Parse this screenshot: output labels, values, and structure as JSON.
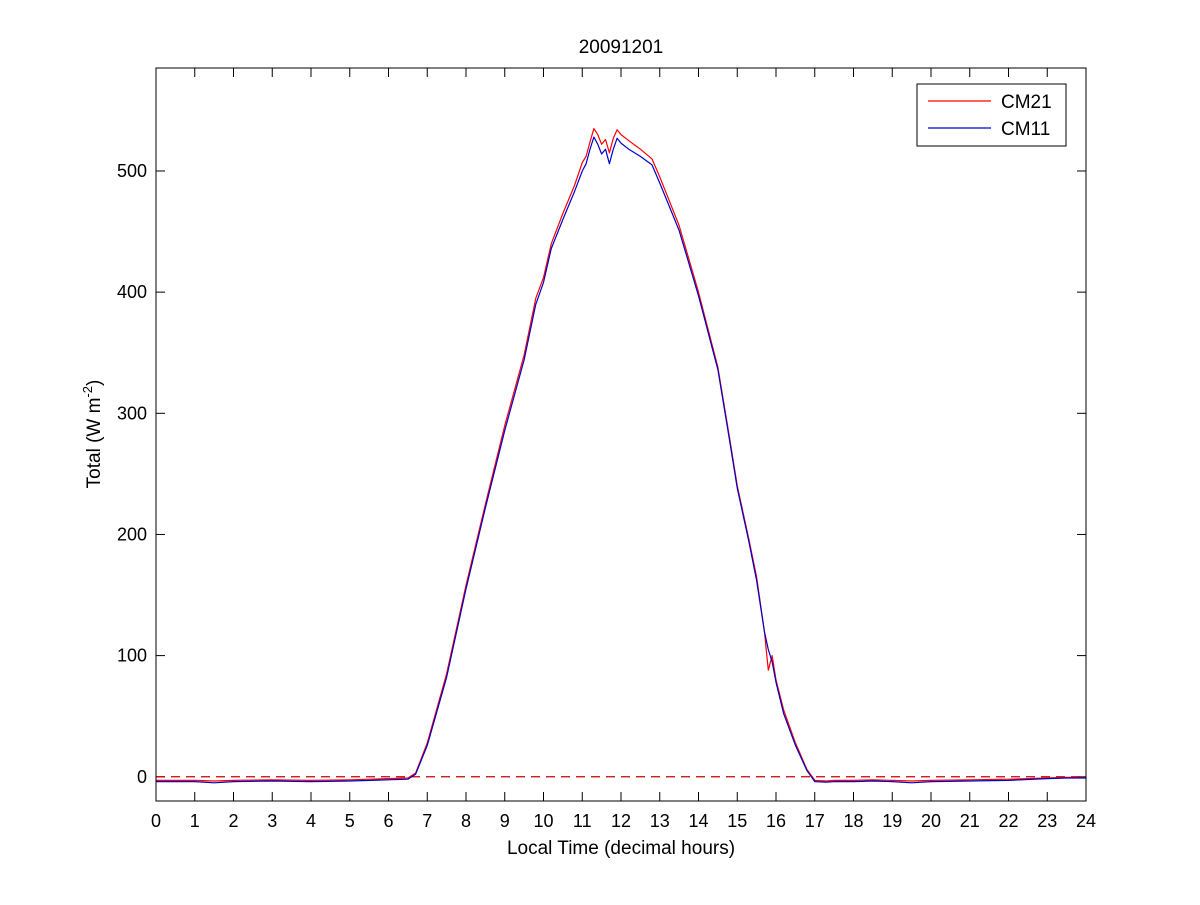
{
  "chart_data": {
    "type": "line",
    "title": "20091201",
    "xlabel": "Local Time (decimal hours)",
    "ylabel": "Total (W m-2)",
    "ylabel_parts": {
      "before": "Total (W m",
      "sup": "-2",
      "after": ")"
    },
    "xlim": [
      0,
      24
    ],
    "ylim": [
      -20,
      585
    ],
    "x_ticks": [
      "0",
      "1",
      "2",
      "3",
      "4",
      "5",
      "6",
      "7",
      "8",
      "9",
      "10",
      "11",
      "12",
      "13",
      "14",
      "15",
      "16",
      "17",
      "18",
      "19",
      "20",
      "21",
      "22",
      "23",
      "24"
    ],
    "y_ticks": [
      "0",
      "100",
      "200",
      "300",
      "400",
      "500"
    ],
    "legend_position": "top-right",
    "grid": false,
    "reference_line": {
      "y": 0,
      "style": "dashed",
      "color": "#cc0000"
    },
    "series": [
      {
        "name": "CM21",
        "color": "#ff0000",
        "points": [
          [
            0,
            -3
          ],
          [
            1,
            -3
          ],
          [
            1.5,
            -3.5
          ],
          [
            2,
            -3
          ],
          [
            3,
            -2.5
          ],
          [
            4,
            -3
          ],
          [
            5,
            -2.5
          ],
          [
            6,
            -1.5
          ],
          [
            6.5,
            -1
          ],
          [
            6.7,
            3
          ],
          [
            7,
            28
          ],
          [
            7.5,
            85
          ],
          [
            8,
            158
          ],
          [
            8.5,
            225
          ],
          [
            9,
            290
          ],
          [
            9.5,
            348
          ],
          [
            9.8,
            395
          ],
          [
            10,
            412
          ],
          [
            10.2,
            440
          ],
          [
            10.5,
            465
          ],
          [
            10.8,
            488
          ],
          [
            11,
            507
          ],
          [
            11.1,
            512
          ],
          [
            11.2,
            524
          ],
          [
            11.3,
            535
          ],
          [
            11.4,
            530
          ],
          [
            11.5,
            522
          ],
          [
            11.6,
            526
          ],
          [
            11.7,
            515
          ],
          [
            11.8,
            527
          ],
          [
            11.9,
            534
          ],
          [
            12,
            530
          ],
          [
            12.2,
            525
          ],
          [
            12.5,
            518
          ],
          [
            12.8,
            510
          ],
          [
            13,
            495
          ],
          [
            13.5,
            455
          ],
          [
            14,
            400
          ],
          [
            14.5,
            338
          ],
          [
            14.8,
            280
          ],
          [
            15,
            240
          ],
          [
            15.3,
            196
          ],
          [
            15.5,
            165
          ],
          [
            15.7,
            120
          ],
          [
            15.8,
            88
          ],
          [
            15.9,
            100
          ],
          [
            16,
            80
          ],
          [
            16.2,
            55
          ],
          [
            16.5,
            28
          ],
          [
            16.8,
            6
          ],
          [
            17,
            -3
          ],
          [
            17.3,
            -3.5
          ],
          [
            17.5,
            -3
          ],
          [
            18,
            -3
          ],
          [
            18.5,
            -2.5
          ],
          [
            19,
            -3
          ],
          [
            19.5,
            -3.5
          ],
          [
            20,
            -3
          ],
          [
            21,
            -2.5
          ],
          [
            22,
            -2
          ],
          [
            23,
            -1
          ],
          [
            23.5,
            -0.5
          ],
          [
            24,
            -0.5
          ]
        ]
      },
      {
        "name": "CM11",
        "color": "#0000cc",
        "points": [
          [
            0,
            -4
          ],
          [
            1,
            -4
          ],
          [
            1.5,
            -5
          ],
          [
            2,
            -4
          ],
          [
            3,
            -3.5
          ],
          [
            4,
            -4
          ],
          [
            5,
            -3.5
          ],
          [
            6,
            -2.5
          ],
          [
            6.5,
            -2
          ],
          [
            6.7,
            2
          ],
          [
            7,
            26
          ],
          [
            7.5,
            82
          ],
          [
            8,
            155
          ],
          [
            8.5,
            222
          ],
          [
            9,
            286
          ],
          [
            9.5,
            344
          ],
          [
            9.8,
            390
          ],
          [
            10,
            408
          ],
          [
            10.2,
            436
          ],
          [
            10.5,
            460
          ],
          [
            10.8,
            483
          ],
          [
            11,
            500
          ],
          [
            11.1,
            506
          ],
          [
            11.2,
            518
          ],
          [
            11.3,
            528
          ],
          [
            11.4,
            522
          ],
          [
            11.5,
            514
          ],
          [
            11.6,
            518
          ],
          [
            11.7,
            506
          ],
          [
            11.8,
            518
          ],
          [
            11.9,
            527
          ],
          [
            12,
            523
          ],
          [
            12.2,
            518
          ],
          [
            12.5,
            512
          ],
          [
            12.8,
            505
          ],
          [
            13,
            490
          ],
          [
            13.5,
            451
          ],
          [
            14,
            397
          ],
          [
            14.5,
            336
          ],
          [
            14.8,
            278
          ],
          [
            15,
            238
          ],
          [
            15.3,
            194
          ],
          [
            15.5,
            162
          ],
          [
            15.7,
            120
          ],
          [
            15.8,
            105
          ],
          [
            15.9,
            95
          ],
          [
            16,
            78
          ],
          [
            16.2,
            52
          ],
          [
            16.5,
            26
          ],
          [
            16.8,
            5
          ],
          [
            17,
            -4
          ],
          [
            17.3,
            -4.5
          ],
          [
            17.5,
            -4
          ],
          [
            18,
            -4
          ],
          [
            18.5,
            -3.5
          ],
          [
            19,
            -4
          ],
          [
            19.5,
            -5
          ],
          [
            20,
            -4
          ],
          [
            21,
            -3.5
          ],
          [
            22,
            -3
          ],
          [
            23,
            -1.5
          ],
          [
            23.5,
            -1
          ],
          [
            24,
            -1
          ]
        ]
      }
    ]
  }
}
